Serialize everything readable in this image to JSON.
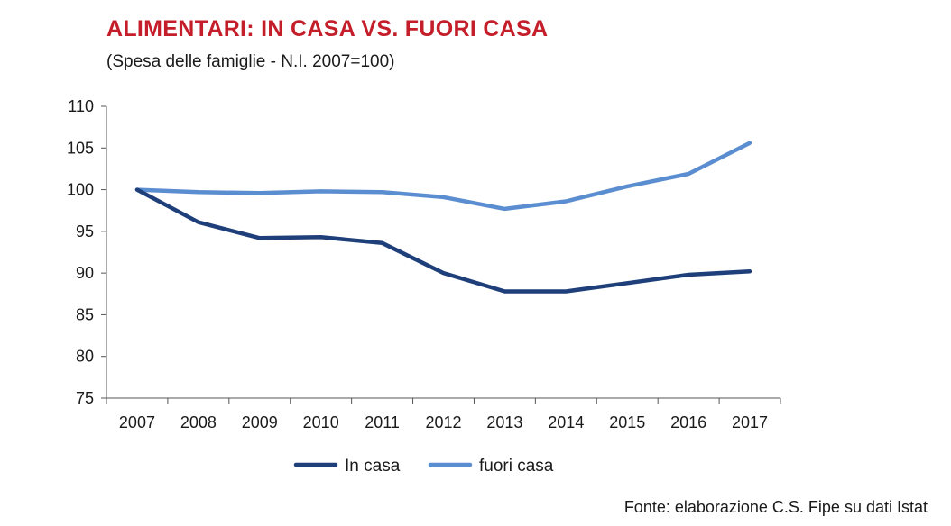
{
  "chart_data": {
    "type": "line",
    "title": "ALIMENTARI: IN CASA VS. FUORI CASA",
    "subtitle": "(Spesa delle famiglie - N.I. 2007=100)",
    "categories": [
      "2007",
      "2008",
      "2009",
      "2010",
      "2011",
      "2012",
      "2013",
      "2014",
      "2015",
      "2016",
      "2017"
    ],
    "ylim": [
      75,
      110
    ],
    "yticks": [
      110,
      105,
      100,
      95,
      90,
      85,
      80,
      75
    ],
    "grid": false,
    "legend_position": "bottom",
    "series": [
      {
        "name": "In casa",
        "color": "#1f3f7a",
        "values": [
          100,
          96.1,
          94.2,
          94.3,
          93.6,
          90.0,
          87.8,
          87.8,
          88.8,
          89.8,
          90.2
        ]
      },
      {
        "name": "fuori casa",
        "color": "#5b8ed0",
        "values": [
          100,
          99.7,
          99.6,
          99.8,
          99.7,
          99.1,
          97.7,
          98.6,
          100.4,
          101.9,
          105.6
        ]
      }
    ],
    "source": "Fonte: elaborazione C.S. Fipe su dati Istat"
  }
}
